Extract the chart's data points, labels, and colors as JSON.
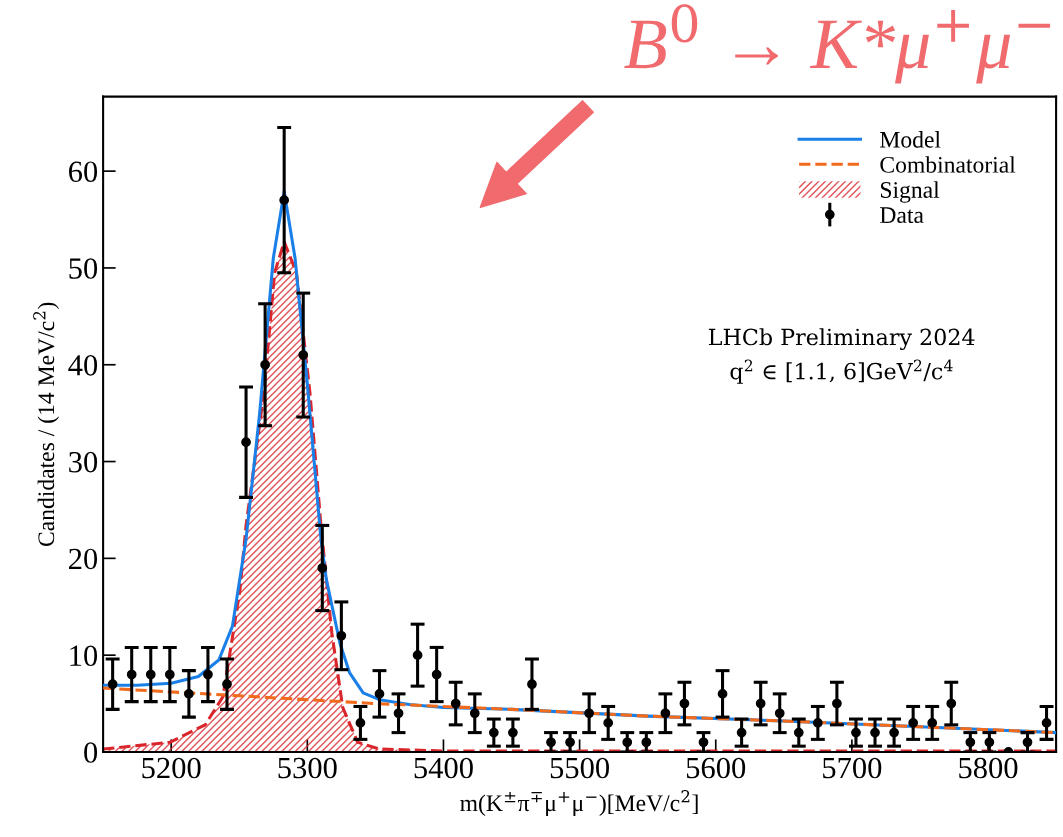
{
  "chart_data": {
    "type": "line",
    "title": "B$^{0}$ → K*μ$^{+}$μ$^{−}$",
    "xlabel": "m(K$^{±}$π$^{∓}$μ$^{+}$μ$^{−}$)[MeV/c$^{2}$]",
    "ylabel": "Candidates / (14 MeV/c$^{2}$)",
    "xlim": [
      5150,
      5850
    ],
    "xticks": [
      5200,
      5300,
      5400,
      5500,
      5600,
      5700,
      5800
    ],
    "ylim": [
      0,
      67.7
    ],
    "yticks": [
      0,
      10,
      20,
      30,
      40,
      50,
      60
    ],
    "grid": false,
    "legend": "top right",
    "annotations": [
      "LHCb Preliminary 2024",
      "q$^{2}$ ∈ [1.1, 6]GeV$^{2}$/c$^{4}$"
    ],
    "series": [
      {
        "name": "Model",
        "line_style": "solid",
        "color": "#1a7fe6",
        "x": [
          5150,
          5175,
          5200,
          5220,
          5235,
          5245,
          5255,
          5265,
          5275,
          5283,
          5291,
          5300,
          5310,
          5314,
          5324,
          5331,
          5341,
          5353,
          5375,
          5400,
          5450,
          5550,
          5650,
          5750,
          5850
        ],
        "values": [
          6.9,
          6.9,
          7.1,
          7.8,
          9.5,
          13,
          22,
          35,
          51,
          57.9,
          51,
          38,
          22,
          17.8,
          11.2,
          8.2,
          6.1,
          5.4,
          4.9,
          4.6,
          4.4,
          3.7,
          3.2,
          2.6,
          2.0
        ]
      },
      {
        "name": "Combinatorial",
        "line_style": "dashed",
        "color": "#f26b1d",
        "x": [
          5150,
          5250,
          5350,
          5450,
          5550,
          5650,
          5750,
          5850
        ],
        "values": [
          6.6,
          5.8,
          5.0,
          4.4,
          3.7,
          3.2,
          2.6,
          2.0
        ]
      },
      {
        "name": "Signal",
        "type": "area",
        "line_style": "dashed",
        "color": "#d9262c",
        "x": [
          5150,
          5199,
          5225,
          5238,
          5250.5,
          5255,
          5268,
          5276,
          5283,
          5292,
          5302,
          5310,
          5318,
          5326,
          5337,
          5353,
          5400,
          5850
        ],
        "values": [
          0.3,
          1.0,
          2.8,
          5.7,
          16.7,
          23.4,
          37,
          49.5,
          52.7,
          49.5,
          37,
          23.4,
          12.3,
          4.6,
          1.0,
          0.3,
          0.1,
          0.1
        ]
      },
      {
        "name": "Data",
        "type": "scatter",
        "marker": "circle",
        "color": "#000000",
        "x": [
          5157,
          5171,
          5185,
          5199,
          5213,
          5227,
          5241,
          5255,
          5269,
          5283,
          5297,
          5311,
          5325,
          5339,
          5353,
          5367,
          5381,
          5395,
          5409,
          5423,
          5437,
          5451,
          5465,
          5479,
          5493,
          5507,
          5521,
          5535,
          5549,
          5563,
          5577,
          5591,
          5605,
          5619,
          5633,
          5647,
          5661,
          5675,
          5689,
          5703,
          5717,
          5731,
          5745,
          5759,
          5773,
          5787,
          5801,
          5815,
          5829,
          5843
        ],
        "values": [
          7,
          8,
          8,
          8,
          6,
          8,
          7,
          32,
          40,
          57,
          41,
          19,
          12,
          3,
          6,
          4,
          10,
          8,
          5,
          4,
          2,
          2,
          7,
          1,
          1,
          4,
          3,
          1,
          1,
          4,
          5,
          1,
          6,
          2,
          5,
          4,
          2,
          3,
          5,
          2,
          2,
          2,
          3,
          3,
          5,
          1,
          1,
          0,
          1,
          3
        ],
        "errors": [
          2.6,
          2.8,
          2.8,
          2.8,
          2.4,
          2.8,
          2.6,
          5.7,
          6.3,
          7.5,
          6.4,
          4.4,
          3.5,
          1.7,
          2.4,
          2,
          3.2,
          2.8,
          2.2,
          2,
          1.4,
          1.4,
          2.6,
          1,
          1,
          2,
          1.7,
          1,
          1,
          2,
          2.2,
          1,
          2.4,
          1.4,
          2.2,
          2,
          1.4,
          1.7,
          2.2,
          1.4,
          1.4,
          1.4,
          1.7,
          1.7,
          2.2,
          1,
          1,
          null,
          1,
          1.7
        ]
      }
    ]
  }
}
